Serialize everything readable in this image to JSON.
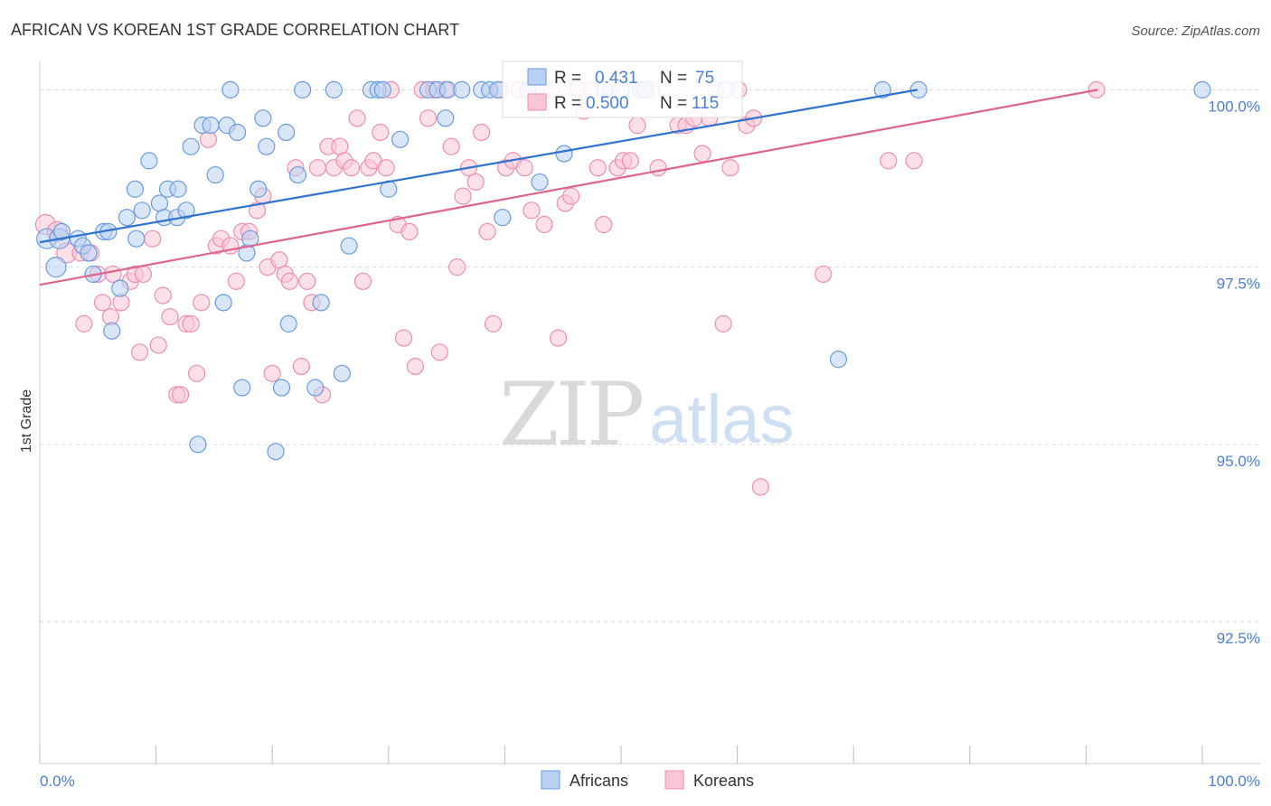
{
  "title": "AFRICAN VS KOREAN 1ST GRADE CORRELATION CHART",
  "source": "Source: ZipAtlas.com",
  "watermark": {
    "zip": "ZIP",
    "atlas": "atlas"
  },
  "colors": {
    "africans_fill": "#b9d1f3",
    "africans_stroke": "#6a9be0",
    "africans_line": "#2f72d0",
    "koreans_fill": "#f9c6d6",
    "koreans_stroke": "#ec8fae",
    "koreans_line": "#e0628f",
    "grid": "#d9d9d9",
    "axis_text": "#4a7fd4"
  },
  "stats": {
    "africans": {
      "r_label": "R =",
      "r": "0.431",
      "n_label": "N =",
      "n": "75"
    },
    "koreans": {
      "r_label": "R =",
      "r": "0.500",
      "n_label": "N =",
      "n": "115"
    }
  },
  "chart_data": {
    "type": "scatter",
    "xlabel": "",
    "ylabel": "1st Grade",
    "xlim": [
      0,
      100
    ],
    "ylim": [
      90.5,
      100.4
    ],
    "x_tick_labels": [
      {
        "value": 0,
        "label": "0.0%"
      },
      {
        "value": 100,
        "label": "100.0%"
      }
    ],
    "y_tick_labels": [
      {
        "value": 100,
        "label": "100.0%"
      },
      {
        "value": 97.5,
        "label": "97.5%"
      },
      {
        "value": 95,
        "label": "95.0%"
      },
      {
        "value": 92.5,
        "label": "92.5%"
      }
    ],
    "grid": true,
    "legend": {
      "placement": "bottom-center",
      "entries": [
        "Africans",
        "Koreans"
      ]
    },
    "series": [
      {
        "name": "Africans",
        "trend": {
          "x": [
            0,
            75.5
          ],
          "y": [
            97.85,
            100.0
          ]
        },
        "points": [
          [
            0.6,
            97.9
          ],
          [
            1.7,
            97.9
          ],
          [
            1.4,
            97.5
          ],
          [
            1.9,
            98.0
          ],
          [
            3.3,
            97.9
          ],
          [
            3.7,
            97.8
          ],
          [
            4.2,
            97.7
          ],
          [
            5.5,
            98.0
          ],
          [
            5.9,
            98.0
          ],
          [
            8.3,
            97.9
          ],
          [
            6.2,
            96.6
          ],
          [
            6.9,
            97.2
          ],
          [
            4.6,
            97.4
          ],
          [
            7.5,
            98.2
          ],
          [
            8.2,
            98.6
          ],
          [
            8.8,
            98.3
          ],
          [
            9.4,
            99.0
          ],
          [
            10.3,
            98.4
          ],
          [
            10.7,
            98.2
          ],
          [
            11.0,
            98.6
          ],
          [
            11.8,
            98.2
          ],
          [
            11.9,
            98.6
          ],
          [
            12.6,
            98.3
          ],
          [
            13.0,
            99.2
          ],
          [
            13.6,
            95.0
          ],
          [
            14.0,
            99.5
          ],
          [
            14.7,
            99.5
          ],
          [
            15.1,
            98.8
          ],
          [
            15.8,
            97.0
          ],
          [
            16.1,
            99.5
          ],
          [
            16.4,
            100.0
          ],
          [
            17.0,
            99.4
          ],
          [
            17.4,
            95.8
          ],
          [
            17.8,
            97.7
          ],
          [
            18.1,
            97.9
          ],
          [
            18.8,
            98.6
          ],
          [
            19.2,
            99.6
          ],
          [
            19.5,
            99.2
          ],
          [
            20.3,
            94.9
          ],
          [
            20.8,
            95.8
          ],
          [
            21.2,
            99.4
          ],
          [
            21.4,
            96.7
          ],
          [
            22.2,
            98.8
          ],
          [
            22.6,
            100.0
          ],
          [
            23.7,
            95.8
          ],
          [
            24.2,
            97.0
          ],
          [
            25.3,
            100.0
          ],
          [
            26.0,
            96.0
          ],
          [
            26.6,
            97.8
          ],
          [
            28.5,
            100.0
          ],
          [
            29.1,
            100.0
          ],
          [
            29.5,
            100.0
          ],
          [
            30.0,
            98.6
          ],
          [
            31.0,
            99.3
          ],
          [
            33.4,
            100.0
          ],
          [
            34.2,
            100.0
          ],
          [
            34.9,
            99.6
          ],
          [
            35.1,
            100.0
          ],
          [
            36.3,
            100.0
          ],
          [
            38.0,
            100.0
          ],
          [
            38.7,
            100.0
          ],
          [
            39.4,
            100.0
          ],
          [
            39.8,
            98.2
          ],
          [
            42.0,
            100.0
          ],
          [
            43.0,
            98.7
          ],
          [
            45.1,
            99.1
          ],
          [
            48.6,
            100.0
          ],
          [
            50.0,
            100.0
          ],
          [
            51.7,
            100.0
          ],
          [
            52.1,
            100.0
          ],
          [
            59.0,
            100.0
          ],
          [
            68.7,
            96.2
          ],
          [
            72.5,
            100.0
          ],
          [
            75.6,
            100.0
          ],
          [
            100.0,
            100.0
          ]
        ]
      },
      {
        "name": "Koreans",
        "trend": {
          "x": [
            0,
            91
          ],
          "y": [
            97.25,
            100.0
          ]
        },
        "points": [
          [
            0.5,
            98.1
          ],
          [
            1.5,
            98.0
          ],
          [
            2.3,
            97.7
          ],
          [
            3.5,
            97.7
          ],
          [
            3.8,
            96.7
          ],
          [
            4.4,
            97.7
          ],
          [
            5.0,
            97.4
          ],
          [
            5.4,
            97.0
          ],
          [
            6.1,
            96.8
          ],
          [
            6.3,
            97.4
          ],
          [
            7.0,
            97.0
          ],
          [
            7.8,
            97.3
          ],
          [
            8.2,
            97.4
          ],
          [
            8.6,
            96.3
          ],
          [
            8.9,
            97.4
          ],
          [
            9.7,
            97.9
          ],
          [
            10.2,
            96.4
          ],
          [
            10.6,
            97.1
          ],
          [
            11.2,
            96.8
          ],
          [
            11.8,
            95.7
          ],
          [
            12.1,
            95.7
          ],
          [
            12.6,
            96.7
          ],
          [
            13.0,
            96.7
          ],
          [
            13.5,
            96.0
          ],
          [
            13.9,
            97.0
          ],
          [
            14.5,
            99.3
          ],
          [
            15.2,
            97.8
          ],
          [
            15.6,
            97.9
          ],
          [
            16.4,
            97.8
          ],
          [
            16.9,
            97.3
          ],
          [
            17.4,
            98.0
          ],
          [
            18.0,
            98.0
          ],
          [
            18.7,
            98.3
          ],
          [
            19.2,
            98.5
          ],
          [
            19.6,
            97.5
          ],
          [
            20.0,
            96.0
          ],
          [
            20.6,
            97.6
          ],
          [
            21.1,
            97.4
          ],
          [
            21.5,
            97.3
          ],
          [
            22.0,
            98.9
          ],
          [
            22.5,
            96.1
          ],
          [
            23.0,
            97.3
          ],
          [
            23.4,
            97.0
          ],
          [
            23.9,
            98.9
          ],
          [
            24.3,
            95.7
          ],
          [
            24.8,
            99.2
          ],
          [
            25.3,
            98.9
          ],
          [
            25.8,
            99.2
          ],
          [
            26.2,
            99.0
          ],
          [
            26.8,
            98.9
          ],
          [
            27.3,
            99.6
          ],
          [
            27.8,
            97.3
          ],
          [
            28.3,
            98.9
          ],
          [
            28.7,
            99.0
          ],
          [
            29.3,
            99.4
          ],
          [
            29.8,
            98.9
          ],
          [
            30.2,
            100.0
          ],
          [
            30.8,
            98.1
          ],
          [
            31.3,
            96.5
          ],
          [
            31.8,
            98.0
          ],
          [
            32.3,
            96.1
          ],
          [
            32.9,
            100.0
          ],
          [
            33.4,
            99.6
          ],
          [
            33.9,
            100.0
          ],
          [
            34.4,
            96.3
          ],
          [
            34.9,
            100.0
          ],
          [
            35.4,
            99.2
          ],
          [
            35.9,
            97.5
          ],
          [
            36.4,
            98.5
          ],
          [
            36.9,
            98.9
          ],
          [
            37.5,
            98.7
          ],
          [
            38.0,
            99.4
          ],
          [
            38.5,
            98.0
          ],
          [
            39.0,
            96.7
          ],
          [
            39.6,
            100.0
          ],
          [
            40.1,
            98.9
          ],
          [
            40.7,
            99.0
          ],
          [
            41.2,
            100.0
          ],
          [
            41.7,
            98.9
          ],
          [
            42.3,
            98.3
          ],
          [
            42.8,
            100.0
          ],
          [
            43.4,
            98.1
          ],
          [
            44.0,
            100.0
          ],
          [
            44.6,
            96.5
          ],
          [
            45.2,
            98.4
          ],
          [
            45.7,
            98.5
          ],
          [
            46.3,
            100.0
          ],
          [
            46.8,
            99.7
          ],
          [
            47.4,
            100.0
          ],
          [
            48.0,
            98.9
          ],
          [
            48.5,
            98.1
          ],
          [
            49.1,
            100.0
          ],
          [
            49.7,
            98.9
          ],
          [
            50.2,
            99.0
          ],
          [
            50.8,
            99.0
          ],
          [
            51.4,
            99.5
          ],
          [
            52.0,
            100.0
          ],
          [
            52.6,
            100.0
          ],
          [
            53.2,
            98.9
          ],
          [
            54.9,
            99.5
          ],
          [
            55.6,
            99.5
          ],
          [
            56.3,
            99.6
          ],
          [
            57.0,
            99.1
          ],
          [
            57.6,
            99.6
          ],
          [
            58.2,
            100.0
          ],
          [
            58.8,
            96.7
          ],
          [
            59.4,
            98.9
          ],
          [
            60.1,
            100.0
          ],
          [
            60.8,
            99.5
          ],
          [
            61.4,
            99.6
          ],
          [
            62.0,
            94.4
          ],
          [
            67.4,
            97.4
          ],
          [
            73.0,
            99.0
          ],
          [
            75.2,
            99.0
          ],
          [
            90.9,
            100.0
          ]
        ]
      }
    ]
  }
}
